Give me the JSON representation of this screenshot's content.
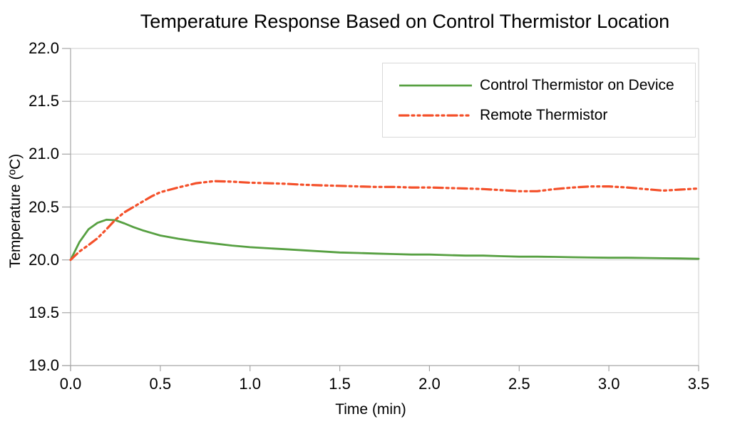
{
  "page": {
    "background": "#ffffff"
  },
  "chart_data": {
    "type": "line",
    "title": "Temperature Response Based on Control Thermistor Location",
    "xlabel": "Time (min)",
    "ylabel": "Temperature (ºC)",
    "xlim": [
      0,
      3.5
    ],
    "ylim": [
      19.0,
      22.0
    ],
    "x_ticks": [
      "0.0",
      "0.5",
      "1.0",
      "1.5",
      "2.0",
      "2.5",
      "3.0",
      "3.5"
    ],
    "y_ticks": [
      "19.0",
      "19.5",
      "20.0",
      "20.5",
      "21.0",
      "21.5",
      "22.0"
    ],
    "grid": "horizontal-only",
    "legend_position": "top-right-inside",
    "colors": {
      "control_series": "#57A042",
      "remote_series": "#F4502A",
      "gridline": "#cccccc",
      "axis": "#a6a6a6",
      "legend_border": "#d9d9d9"
    },
    "x": [
      0,
      0.05,
      0.1,
      0.15,
      0.2,
      0.25,
      0.3,
      0.35,
      0.4,
      0.45,
      0.5,
      0.6,
      0.7,
      0.8,
      0.9,
      1,
      1.1,
      1.2,
      1.3,
      1.4,
      1.5,
      1.6,
      1.7,
      1.8,
      1.9,
      2,
      2.1,
      2.2,
      2.3,
      2.4,
      2.5,
      2.6,
      2.7,
      2.8,
      2.9,
      3,
      3.1,
      3.2,
      3.3,
      3.4,
      3.5
    ],
    "series": [
      {
        "name": "Control Thermistor on Device",
        "color": "#57A042",
        "style": "solid",
        "values": [
          20,
          20.17,
          20.29,
          20.35,
          20.38,
          20.375,
          20.345,
          20.31,
          20.28,
          20.255,
          20.23,
          20.2,
          20.175,
          20.155,
          20.135,
          20.12,
          20.11,
          20.1,
          20.09,
          20.08,
          20.07,
          20.065,
          20.06,
          20.055,
          20.05,
          20.05,
          20.045,
          20.04,
          20.04,
          20.035,
          20.03,
          20.03,
          20.028,
          20.025,
          20.022,
          20.02,
          20.02,
          20.018,
          20.015,
          20.013,
          20.01
        ]
      },
      {
        "name": "Remote Thermistor",
        "color": "#F4502A",
        "style": "dash-dot-dot",
        "values": [
          20,
          20.08,
          20.14,
          20.205,
          20.29,
          20.38,
          20.45,
          20.5,
          20.55,
          20.6,
          20.64,
          20.685,
          20.725,
          20.745,
          20.74,
          20.73,
          20.725,
          20.72,
          20.71,
          20.705,
          20.7,
          20.695,
          20.69,
          20.69,
          20.685,
          20.685,
          20.68,
          20.675,
          20.67,
          20.66,
          20.65,
          20.65,
          20.67,
          20.685,
          20.695,
          20.695,
          20.685,
          20.67,
          20.655,
          20.665,
          20.675
        ]
      }
    ]
  }
}
